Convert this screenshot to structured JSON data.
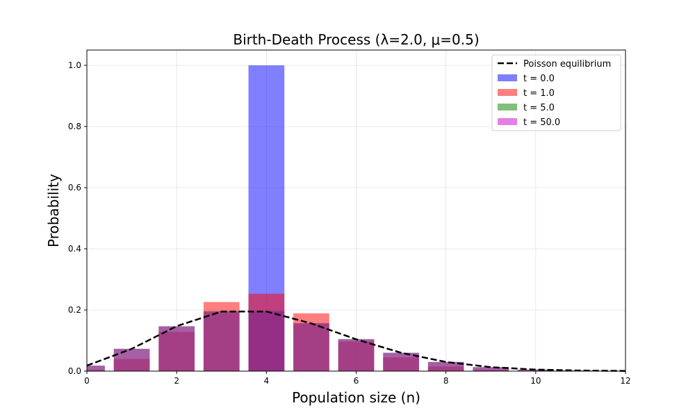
{
  "chart_data": {
    "type": "bar",
    "title": "Birth-Death Process (λ=2.0, μ=0.5)",
    "xlabel": "Population size (n)",
    "ylabel": "Probability",
    "xlim": [
      0,
      12
    ],
    "ylim": [
      0,
      1.05
    ],
    "xticks": [
      0,
      2,
      4,
      6,
      8,
      10,
      12
    ],
    "yticks": [
      0.0,
      0.2,
      0.4,
      0.6,
      0.8,
      1.0
    ],
    "grid": true,
    "legend_position": "top-right",
    "categories": [
      0,
      1,
      2,
      3,
      4,
      5,
      6,
      7,
      8,
      9,
      10,
      11,
      12
    ],
    "series": [
      {
        "name": "t = 0.0",
        "color": "#0000ff",
        "alpha": 0.5,
        "values": [
          0,
          0,
          0,
          0,
          1.0,
          0,
          0,
          0,
          0,
          0,
          0,
          0,
          0
        ]
      },
      {
        "name": "t = 1.0",
        "color": "#ff0000",
        "alpha": 0.5,
        "values": [
          0.004,
          0.04,
          0.128,
          0.226,
          0.253,
          0.189,
          0.097,
          0.045,
          0.015,
          0.004,
          0.001,
          0.0,
          0.0
        ]
      },
      {
        "name": "t = 5.0",
        "color": "#008000",
        "alpha": 0.5,
        "values": [
          0.018,
          0.073,
          0.146,
          0.196,
          0.196,
          0.156,
          0.105,
          0.06,
          0.03,
          0.013,
          0.005,
          0.002,
          0.001
        ]
      },
      {
        "name": "t = 50.0",
        "color": "#cc00cc",
        "alpha": 0.5,
        "values": [
          0.018,
          0.073,
          0.147,
          0.195,
          0.196,
          0.157,
          0.104,
          0.06,
          0.03,
          0.013,
          0.005,
          0.002,
          0.001
        ]
      }
    ],
    "line": {
      "name": "Poisson equilibrium",
      "color": "#000000",
      "style": "dashed",
      "x": [
        0,
        1,
        2,
        3,
        4,
        5,
        6,
        7,
        8,
        9,
        10,
        11,
        12
      ],
      "y": [
        0.018,
        0.073,
        0.147,
        0.195,
        0.195,
        0.156,
        0.104,
        0.06,
        0.03,
        0.013,
        0.005,
        0.002,
        0.0006
      ]
    }
  }
}
